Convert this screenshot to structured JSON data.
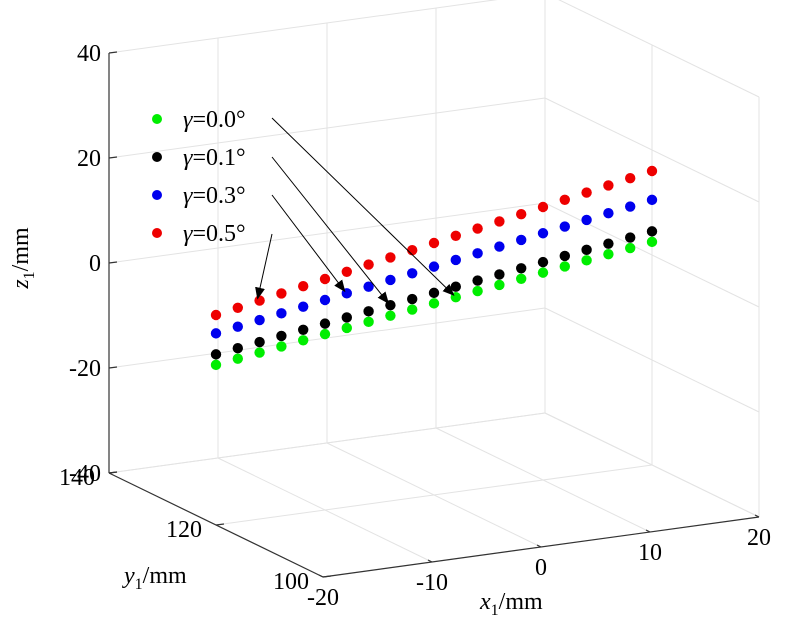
{
  "chart_data": {
    "type": "scatter3d",
    "axes": {
      "x": {
        "label_var": "x",
        "label_sub": "1",
        "label_unit": "/mm",
        "ticks": [
          "-20",
          "-10",
          "0",
          "10",
          "20"
        ],
        "range": [
          -20,
          20
        ]
      },
      "y": {
        "label_var": "y",
        "label_sub": "1",
        "label_unit": "/mm",
        "ticks": [
          "100",
          "120",
          "140"
        ],
        "range": [
          100,
          140
        ]
      },
      "z": {
        "label_var": "z",
        "label_sub": "1",
        "label_unit": "/mm",
        "ticks": [
          "-40",
          "-20",
          "0",
          "20",
          "40"
        ],
        "range": [
          -40,
          40
        ]
      }
    },
    "grid": true,
    "x_values": [
      -20,
      -18,
      -16,
      -14,
      -12,
      -10,
      -8,
      -6,
      -4,
      -2,
      0,
      2,
      4,
      6,
      8,
      10,
      12,
      14,
      16,
      18,
      20
    ],
    "y_value": 120,
    "series": [
      {
        "name": "γ=0.0°",
        "symbol": "γ",
        "label": "=0.0°",
        "color": "#00ee00",
        "z": [
          -9.5,
          -8.9,
          -8.3,
          -7.7,
          -7.1,
          -6.5,
          -5.9,
          -5.3,
          -4.7,
          -4.1,
          -3.5,
          -2.9,
          -2.3,
          -1.7,
          -1.1,
          -0.5,
          0.1,
          0.7,
          1.3,
          1.9,
          2.5
        ]
      },
      {
        "name": "γ=0.1°",
        "symbol": "γ",
        "label": "=0.1°",
        "color": "#000000",
        "z": [
          -7.5,
          -6.9,
          -6.3,
          -5.7,
          -5.1,
          -4.5,
          -3.9,
          -3.3,
          -2.7,
          -2.1,
          -1.5,
          -0.9,
          -0.3,
          0.3,
          0.9,
          1.5,
          2.1,
          2.7,
          3.3,
          3.9,
          4.5
        ]
      },
      {
        "name": "γ=0.3°",
        "symbol": "γ",
        "label": "=0.3°",
        "color": "#0000ee",
        "z": [
          -3.5,
          -2.8,
          -2.1,
          -1.4,
          -0.7,
          0.0,
          0.7,
          1.4,
          2.1,
          2.8,
          3.5,
          4.2,
          4.9,
          5.6,
          6.3,
          7.0,
          7.7,
          8.4,
          9.1,
          9.8,
          10.5
        ]
      },
      {
        "name": "γ=0.5°",
        "symbol": "γ",
        "label": "=0.5°",
        "color": "#ee0000",
        "z": [
          0.0,
          0.8,
          1.6,
          2.4,
          3.2,
          4.0,
          4.8,
          5.6,
          6.4,
          7.2,
          8.0,
          8.8,
          9.6,
          10.4,
          11.2,
          12.0,
          12.8,
          13.6,
          14.4,
          15.2,
          16.0
        ]
      }
    ]
  }
}
